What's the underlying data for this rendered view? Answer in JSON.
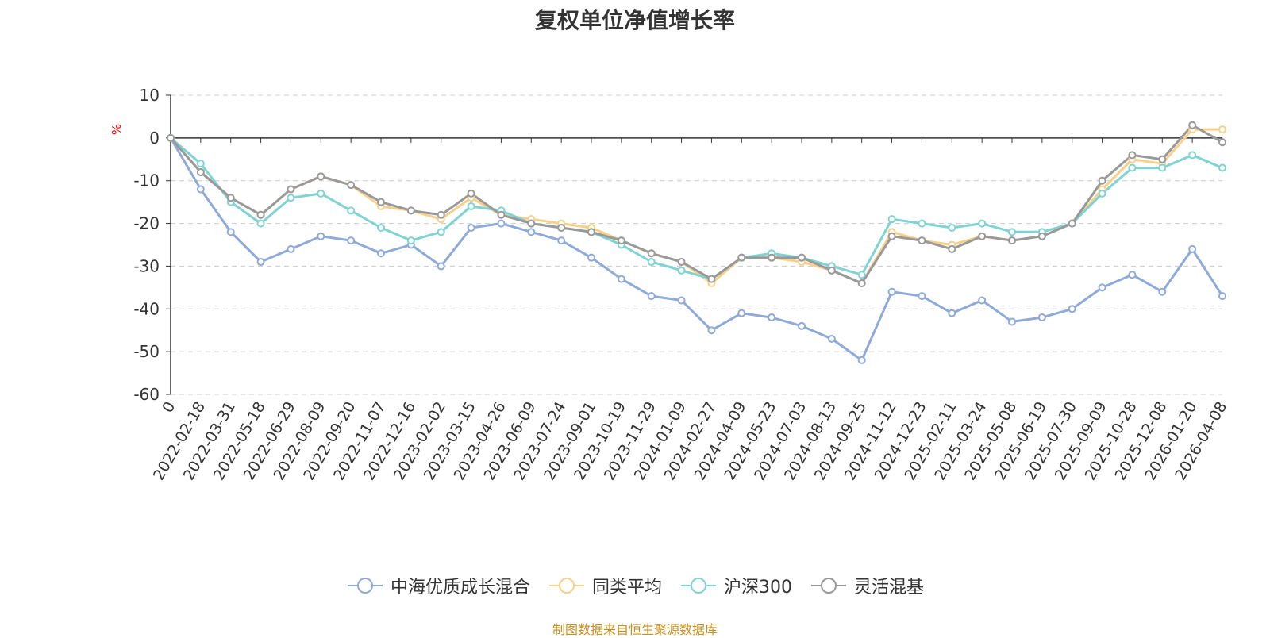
{
  "chart_data": {
    "type": "line",
    "title": "复权单位净值增长率",
    "ylabel": "%",
    "ylim": [
      -60,
      10
    ],
    "yticks": [
      10,
      0,
      -10,
      -20,
      -30,
      -40,
      -50,
      -60
    ],
    "grid": true,
    "legend_position": "bottom",
    "x_ticks": [
      "0",
      "2022-02-18",
      "2022-03-31",
      "2022-05-18",
      "2022-06-29",
      "2022-08-09",
      "2022-09-20",
      "2022-11-07",
      "2022-12-16",
      "2023-02-02",
      "2023-03-15",
      "2023-04-26",
      "2023-06-09",
      "2023-07-24",
      "2023-09-01",
      "2023-10-19",
      "2023-11-29",
      "2024-01-09",
      "2024-02-27",
      "2024-04-09",
      "2024-05-23",
      "2024-07-03",
      "2024-08-13",
      "2024-09-25",
      "2024-11-12",
      "2024-12-23",
      "2025-02-11",
      "2025-03-24",
      "2025-05-08",
      "2025-06-19",
      "2025-07-30",
      "2025-09-09",
      "2025-10-28",
      "2025-12-08",
      "2026-01-20",
      "2026-04-08"
    ],
    "x": [
      "0",
      "2022-02-18",
      "2022-03-31",
      "2022-05-18",
      "2022-06-29",
      "2022-08-09",
      "2022-09-20",
      "2022-11-07",
      "2022-12-16",
      "2023-02-02",
      "2023-03-15",
      "2023-04-26",
      "2023-06-09",
      "2023-07-24",
      "2023-09-01",
      "2023-10-19",
      "2023-11-29",
      "2024-01-09",
      "2024-02-27",
      "2024-04-09",
      "2024-05-23",
      "2024-07-03",
      "2024-08-13",
      "2024-09-25",
      "2024-11-12",
      "2024-12-23",
      "2025-02-11",
      "2025-03-24",
      "2025-05-08",
      "2025-06-19",
      "2025-07-30",
      "2025-09-09",
      "2025-10-28",
      "2025-12-08",
      "2026-01-20",
      "2026-04-08"
    ],
    "series": [
      {
        "name": "中海优质成长混合",
        "color": "#8eaadb",
        "values": [
          0,
          -12,
          -22,
          -29,
          -26,
          -23,
          -24,
          -27,
          -25,
          -30,
          -21,
          -20,
          -22,
          -24,
          -28,
          -33,
          -37,
          -38,
          -45,
          -41,
          -42,
          -44,
          -47,
          -52,
          -36,
          -37,
          -41,
          -38,
          -43,
          -42,
          -40,
          -35,
          -32,
          -36,
          -26,
          -37
        ]
      },
      {
        "name": "同类平均",
        "color": "#f7d08a",
        "values": [
          0,
          -8,
          -14,
          -18,
          -12,
          -9,
          -11,
          -16,
          -17,
          -19,
          -14,
          -18,
          -19,
          -20,
          -21,
          -24,
          -27,
          -29,
          -34,
          -28,
          -28,
          -29,
          -31,
          -34,
          -22,
          -24,
          -25,
          -23,
          -24,
          -23,
          -20,
          -12,
          -5,
          -6,
          2,
          2
        ]
      },
      {
        "name": "沪深300",
        "color": "#7fd3d3",
        "values": [
          0,
          -6,
          -15,
          -20,
          -14,
          -13,
          -17,
          -21,
          -24,
          -22,
          -16,
          -17,
          -20,
          -21,
          -22,
          -25,
          -29,
          -31,
          -33,
          -28,
          -27,
          -28,
          -30,
          -32,
          -19,
          -20,
          -21,
          -20,
          -22,
          -22,
          -20,
          -13,
          -7,
          -7,
          -4,
          -7
        ]
      },
      {
        "name": "灵活混基",
        "color": "#999999",
        "values": [
          0,
          -8,
          -14,
          -18,
          -12,
          -9,
          -11,
          -15,
          -17,
          -18,
          -13,
          -18,
          -20,
          -21,
          -22,
          -24,
          -27,
          -29,
          -33,
          -28,
          -28,
          -28,
          -31,
          -34,
          -23,
          -24,
          -26,
          -23,
          -24,
          -23,
          -20,
          -10,
          -4,
          -5,
          3,
          -1
        ]
      }
    ]
  },
  "source_note": "制图数据来自恒生聚源数据库"
}
